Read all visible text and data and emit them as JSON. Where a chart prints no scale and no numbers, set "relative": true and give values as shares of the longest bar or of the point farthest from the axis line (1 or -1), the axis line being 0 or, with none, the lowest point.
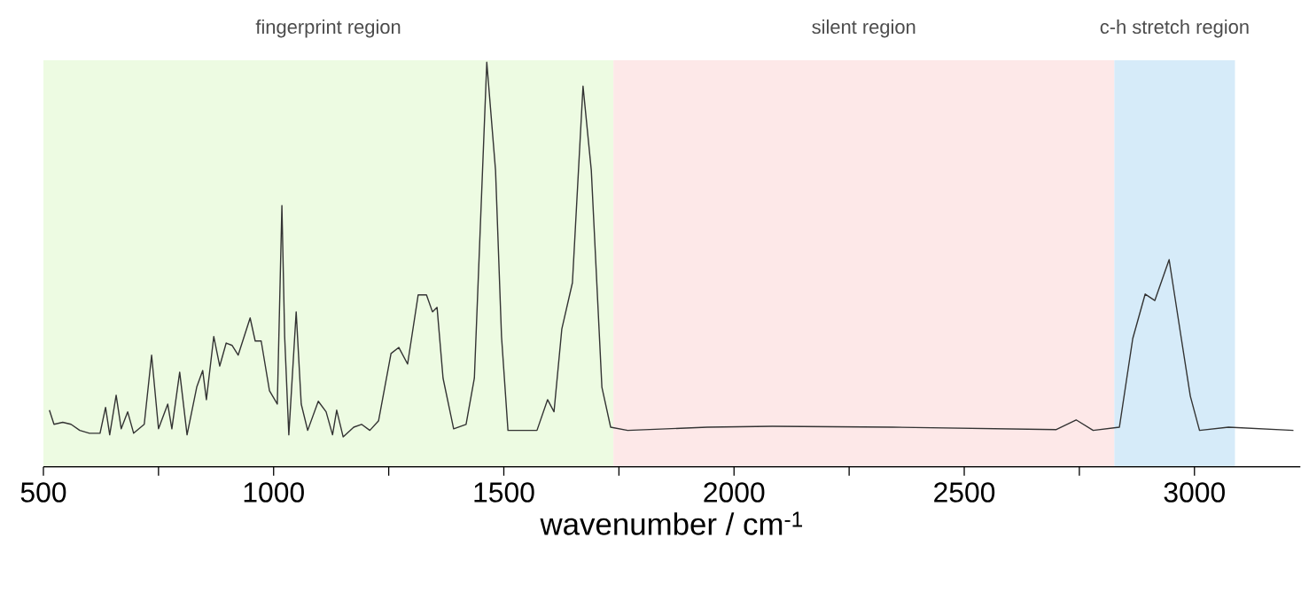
{
  "chart_data": {
    "type": "line",
    "relative": true,
    "xlabel": "wavenumber / cm$^{-1}$",
    "xlim": [
      500,
      3230
    ],
    "xticks": [
      500,
      {
        "value": 750,
        "label": null
      },
      1000,
      {
        "value": 1250,
        "label": null
      },
      1500,
      {
        "value": 1750,
        "label": null
      },
      2000,
      {
        "value": 2250,
        "label": null
      },
      2500,
      {
        "value": 2750,
        "label": null
      },
      3000
    ],
    "bands": [
      {
        "axis": "x",
        "from": 500,
        "to": 1738,
        "label": "fingerprint region",
        "color": "#edfbe2"
      },
      {
        "axis": "x",
        "from": 1738,
        "to": 2826,
        "label": "silent region",
        "color": "#fde8e8"
      },
      {
        "axis": "x",
        "from": 2826,
        "to": 3088,
        "label": "c-h stretch region",
        "color": "#d6ebf9"
      }
    ],
    "series": [
      {
        "color": "#333333",
        "x": [
          513,
          523,
          542,
          560,
          579,
          600,
          623,
          635,
          644,
          658,
          669,
          683,
          696,
          719,
          735,
          750,
          770,
          779,
          796,
          812,
          833,
          846,
          854,
          870,
          883,
          897,
          910,
          923,
          949,
          960,
          973,
          991,
          1008,
          1018,
          1024,
          1033,
          1049,
          1060,
          1074,
          1097,
          1114,
          1128,
          1137,
          1151,
          1174,
          1191,
          1209,
          1228,
          1255,
          1272,
          1291,
          1314,
          1332,
          1345,
          1355,
          1368,
          1391,
          1418,
          1436,
          1463,
          1482,
          1495,
          1509,
          1541,
          1572,
          1595,
          1609,
          1626,
          1649,
          1672,
          1690,
          1713,
          1732,
          1769,
          1942,
          2083,
          2344,
          2700,
          2743,
          2780,
          2837,
          2866,
          2893,
          2914,
          2945,
          2970,
          2991,
          3011,
          3074,
          3215
        ],
        "values": [
          0.14,
          0.105,
          0.11,
          0.105,
          0.09,
          0.083,
          0.083,
          0.147,
          0.079,
          0.177,
          0.094,
          0.136,
          0.083,
          0.105,
          0.276,
          0.094,
          0.155,
          0.094,
          0.234,
          0.079,
          0.197,
          0.238,
          0.166,
          0.322,
          0.249,
          0.306,
          0.3,
          0.276,
          0.368,
          0.311,
          0.311,
          0.188,
          0.155,
          0.646,
          0.322,
          0.079,
          0.383,
          0.155,
          0.09,
          0.162,
          0.136,
          0.079,
          0.14,
          0.074,
          0.098,
          0.105,
          0.09,
          0.114,
          0.28,
          0.295,
          0.254,
          0.425,
          0.425,
          0.383,
          0.394,
          0.219,
          0.094,
          0.105,
          0.219,
          1,
          0.733,
          0.322,
          0.09,
          0.09,
          0.09,
          0.166,
          0.136,
          0.341,
          0.455,
          0.941,
          0.733,
          0.197,
          0.098,
          0.09,
          0.098,
          0.1,
          0.098,
          0.092,
          0.116,
          0.09,
          0.098,
          0.317,
          0.427,
          0.411,
          0.512,
          0.328,
          0.175,
          0.09,
          0.098,
          0.09
        ]
      }
    ]
  }
}
